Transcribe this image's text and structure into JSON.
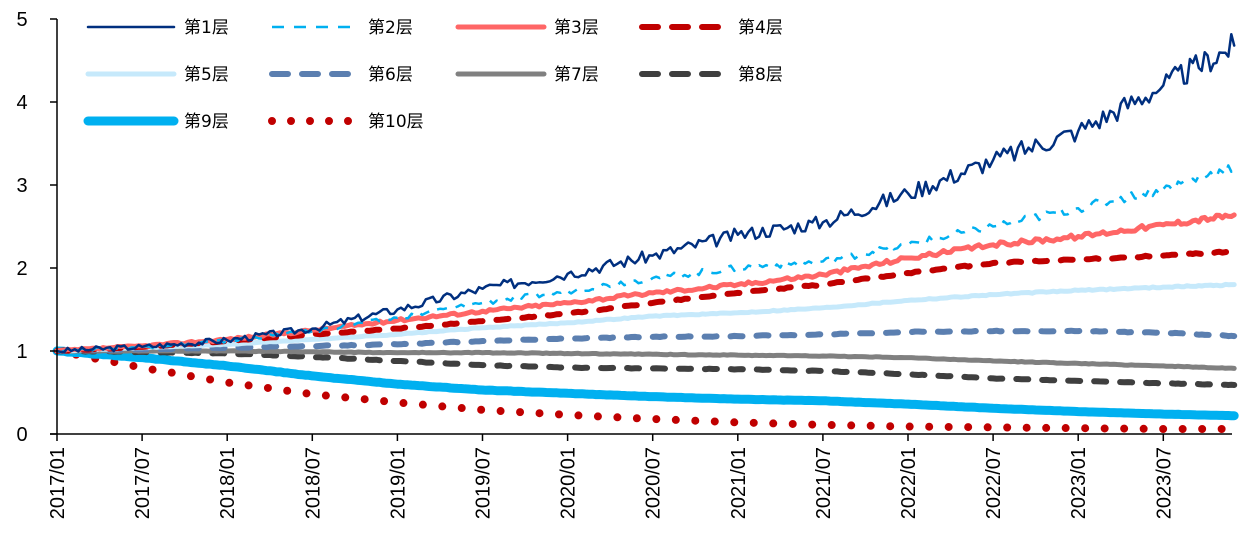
{
  "chart_data": {
    "type": "line",
    "title": "",
    "xlabel": "",
    "ylabel": "",
    "ylim": [
      0,
      5
    ],
    "yticks": [
      0,
      1,
      2,
      3,
      4,
      5
    ],
    "grid": false,
    "legend_position": "top-left",
    "x": [
      "2017/01",
      "2017/07",
      "2018/01",
      "2018/07",
      "2019/01",
      "2019/07",
      "2020/01",
      "2020/07",
      "2021/01",
      "2021/07",
      "2022/01",
      "2022/07",
      "2023/01",
      "2023/07",
      "2023/12"
    ],
    "xtick_labels": [
      "2017/01",
      "2017/07",
      "2018/01",
      "2018/07",
      "2019/01",
      "2019/07",
      "2020/01",
      "2020/07",
      "2021/01",
      "2021/07",
      "2022/01",
      "2022/07",
      "2023/01",
      "2023/07"
    ],
    "series": [
      {
        "name": "第1层",
        "color": "#002f7f",
        "style": "solid",
        "values": [
          1.0,
          1.05,
          1.13,
          1.27,
          1.5,
          1.75,
          1.93,
          2.15,
          2.4,
          2.55,
          2.9,
          3.3,
          3.65,
          4.2,
          4.68
        ]
      },
      {
        "name": "第2层",
        "color": "#00b0f0",
        "style": "dash",
        "values": [
          1.0,
          1.05,
          1.12,
          1.24,
          1.4,
          1.58,
          1.72,
          1.88,
          2.0,
          2.08,
          2.28,
          2.5,
          2.72,
          2.95,
          3.22
        ]
      },
      {
        "name": "第3层",
        "color": "#ff6666",
        "style": "solid-thick",
        "values": [
          1.0,
          1.06,
          1.14,
          1.25,
          1.37,
          1.48,
          1.58,
          1.7,
          1.8,
          1.92,
          2.12,
          2.28,
          2.38,
          2.52,
          2.64
        ]
      },
      {
        "name": "第4层",
        "color": "#c00000",
        "style": "dash-thick",
        "values": [
          1.0,
          1.05,
          1.12,
          1.2,
          1.27,
          1.36,
          1.45,
          1.58,
          1.7,
          1.8,
          1.94,
          2.06,
          2.1,
          2.15,
          2.2
        ]
      },
      {
        "name": "第5层",
        "color": "#c6e9fb",
        "style": "solid-thick",
        "values": [
          1.0,
          1.04,
          1.08,
          1.14,
          1.2,
          1.28,
          1.34,
          1.42,
          1.46,
          1.52,
          1.61,
          1.68,
          1.73,
          1.77,
          1.8
        ]
      },
      {
        "name": "第6层",
        "color": "#5b7fb0",
        "style": "dash-thick",
        "values": [
          1.0,
          1.02,
          1.04,
          1.06,
          1.08,
          1.12,
          1.15,
          1.17,
          1.18,
          1.2,
          1.23,
          1.24,
          1.24,
          1.22,
          1.18
        ]
      },
      {
        "name": "第7层",
        "color": "#808080",
        "style": "solid-thick",
        "values": [
          1.0,
          1.0,
          1.0,
          0.99,
          0.98,
          0.98,
          0.97,
          0.96,
          0.95,
          0.94,
          0.92,
          0.88,
          0.85,
          0.82,
          0.79
        ]
      },
      {
        "name": "第8层",
        "color": "#3f3f3f",
        "style": "dash-thick",
        "values": [
          1.0,
          0.99,
          0.97,
          0.93,
          0.88,
          0.83,
          0.8,
          0.79,
          0.78,
          0.76,
          0.72,
          0.67,
          0.64,
          0.61,
          0.59
        ]
      },
      {
        "name": "第9层",
        "color": "#00b0f0",
        "style": "solid-xthick",
        "values": [
          1.0,
          0.92,
          0.82,
          0.7,
          0.6,
          0.53,
          0.49,
          0.45,
          0.42,
          0.4,
          0.36,
          0.31,
          0.27,
          0.24,
          0.22
        ]
      },
      {
        "name": "第10层",
        "color": "#c00000",
        "style": "dot",
        "values": [
          1.0,
          0.8,
          0.62,
          0.48,
          0.38,
          0.29,
          0.23,
          0.18,
          0.14,
          0.11,
          0.09,
          0.08,
          0.07,
          0.06,
          0.06
        ]
      }
    ]
  }
}
